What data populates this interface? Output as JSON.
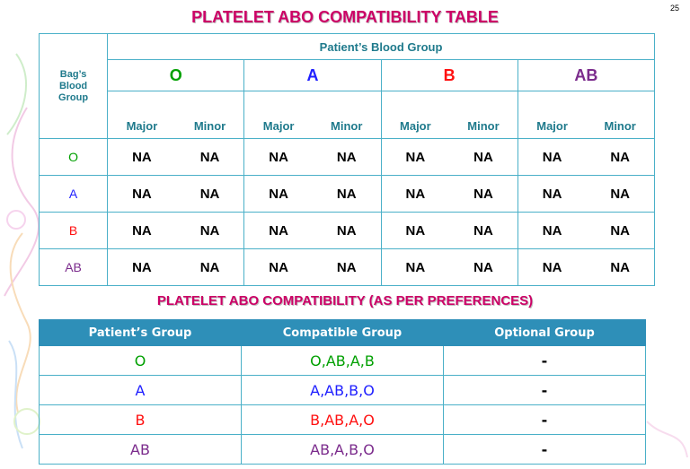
{
  "slide_number": "25",
  "title": "PLATELET ABO COMPATIBILITY TABLE",
  "bag_label": [
    "Bag’s",
    "Blood",
    "Group"
  ],
  "patient_header": "Patient’s Blood Group",
  "groups": [
    "O",
    "A",
    "B",
    "AB"
  ],
  "sub_headers": [
    "Major",
    "Minor",
    "Major",
    "Minor",
    "Major",
    "Minor",
    "Major",
    "Minor"
  ],
  "rows": [
    {
      "label": "O",
      "cells": [
        "NA",
        "NA",
        "NA",
        "NA",
        "NA",
        "NA",
        "NA",
        "NA"
      ]
    },
    {
      "label": "A",
      "cells": [
        "NA",
        "NA",
        "NA",
        "NA",
        "NA",
        "NA",
        "NA",
        "NA"
      ]
    },
    {
      "label": "B",
      "cells": [
        "NA",
        "NA",
        "NA",
        "NA",
        "NA",
        "NA",
        "NA",
        "NA"
      ]
    },
    {
      "label": "AB",
      "cells": [
        "NA",
        "NA",
        "NA",
        "NA",
        "NA",
        "NA",
        "NA",
        "NA"
      ]
    }
  ],
  "title2": "PLATELET ABO COMPATIBILITY (AS PER PREFERENCES)",
  "pref_headers": [
    "Patient’s Group",
    "Compatible Group",
    "Optional Group"
  ],
  "pref_rows": [
    {
      "patient": "O",
      "compatible": "O,AB,A,B",
      "optional": "-"
    },
    {
      "patient": "A",
      "compatible": "A,AB,B,O",
      "optional": "-"
    },
    {
      "patient": "B",
      "compatible": "B,AB,A,O",
      "optional": "-"
    },
    {
      "patient": "AB",
      "compatible": "AB,A,B,O",
      "optional": "-"
    }
  ],
  "colors": {
    "title": "#cc0066",
    "header_text": "#1f7a8c",
    "border": "#4ab0c8",
    "table_header_bg": "#2e8fb8",
    "group_O": "#00a000",
    "group_A": "#2020ff",
    "group_B": "#ff1010",
    "group_AB": "#7b2b8c"
  }
}
